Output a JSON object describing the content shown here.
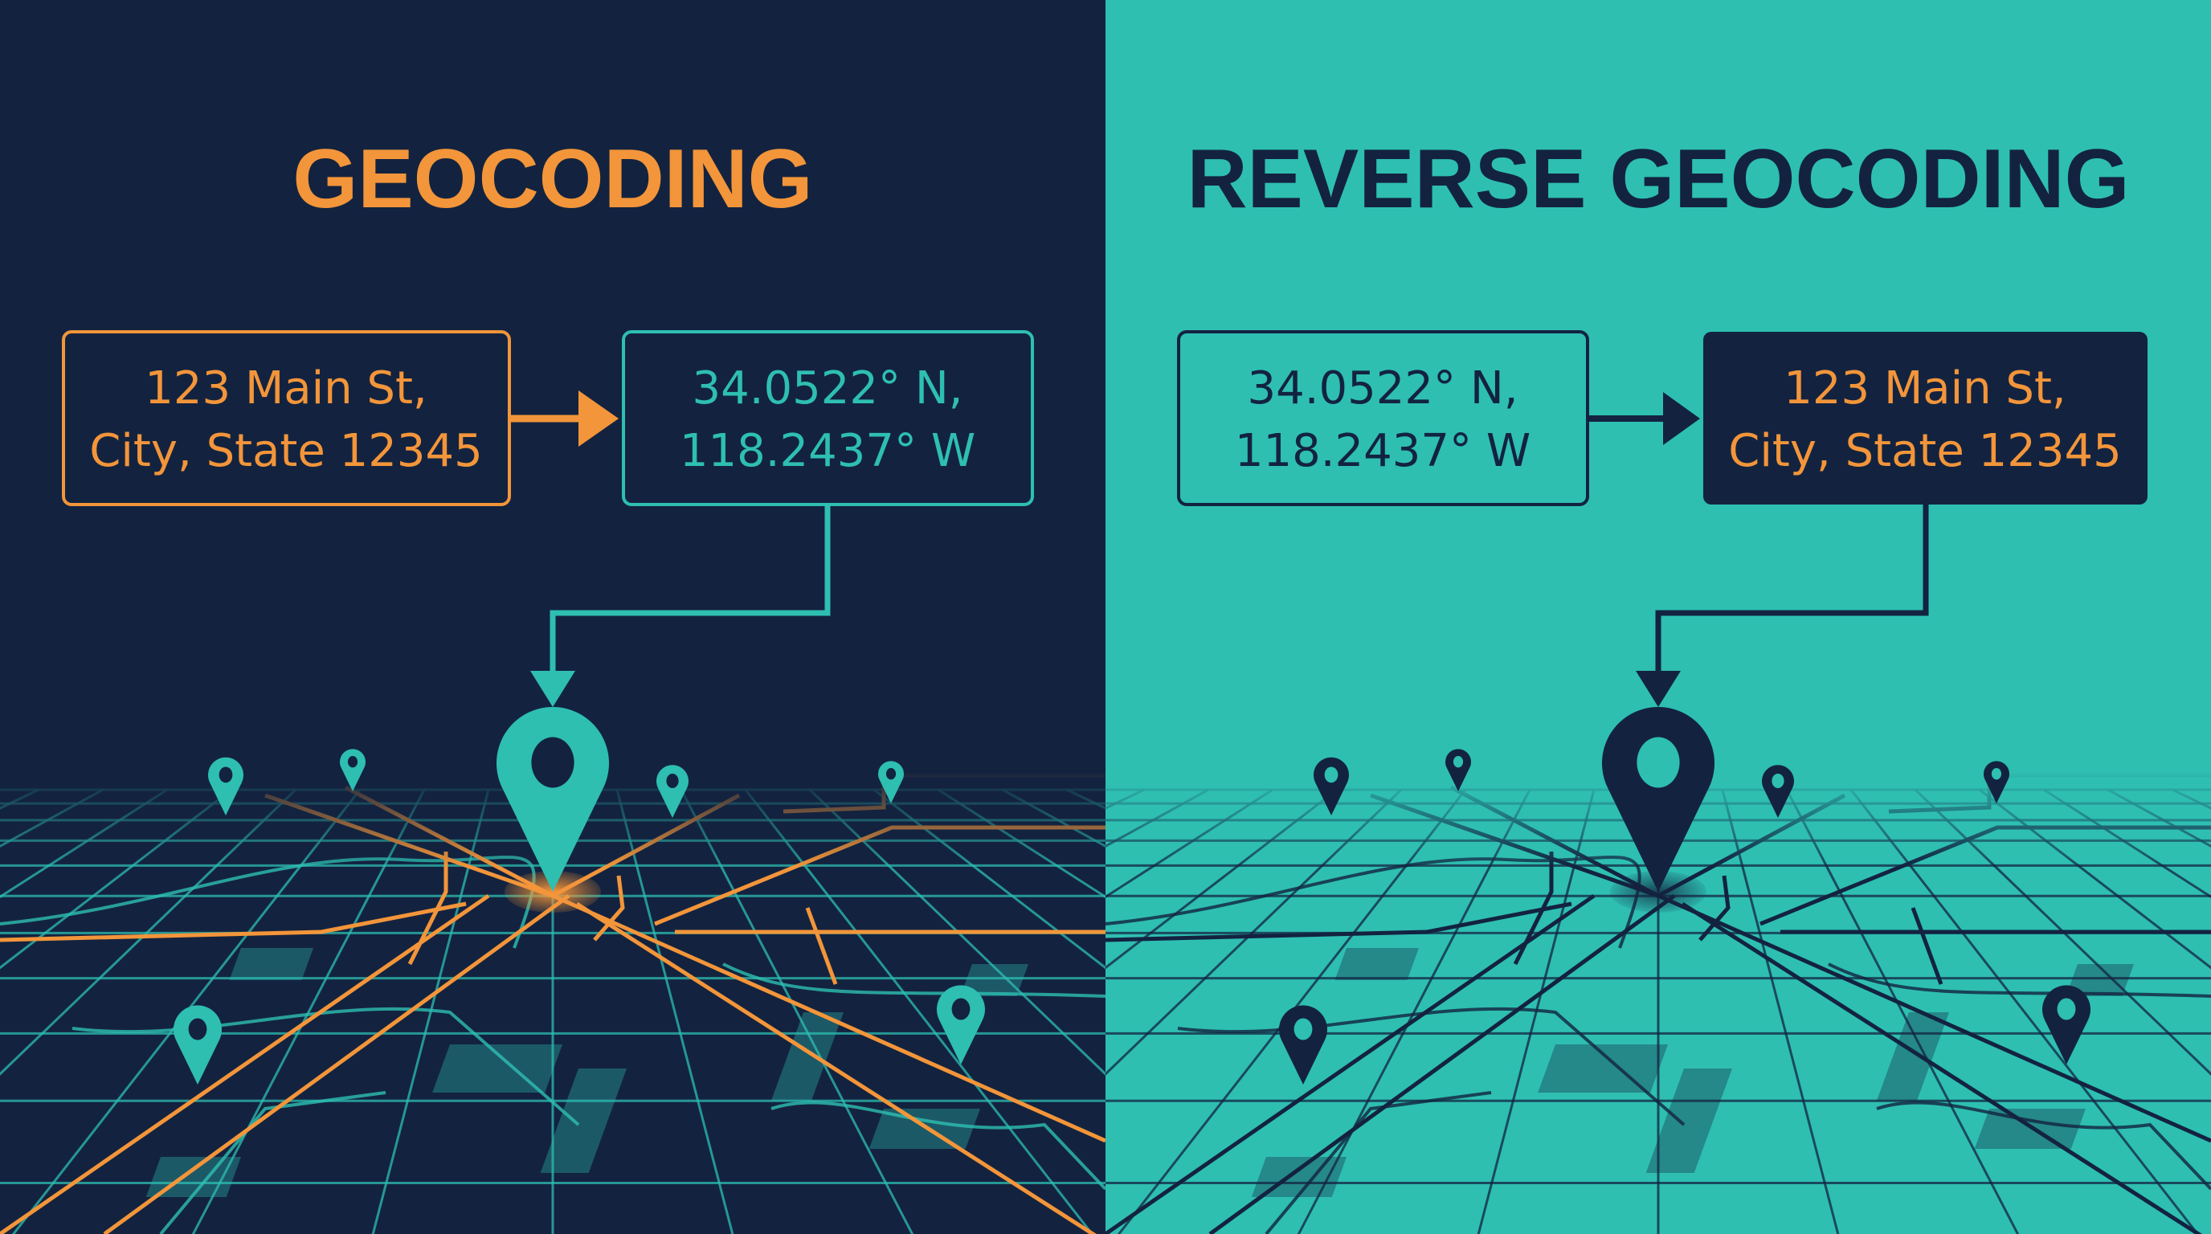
{
  "colors": {
    "navy": "#13233f",
    "teal": "#2ebfb1",
    "orange": "#f3953a"
  },
  "left_panel": {
    "title": "GEOCODING",
    "input_box": {
      "line1": "123 Main St,",
      "line2": "City, State 12345"
    },
    "output_box": {
      "line1": "34.0522° N,",
      "line2": "118.2437° W"
    },
    "pin_icon": "map-pin-icon"
  },
  "right_panel": {
    "title": "REVERSE GEOCODING",
    "input_box": {
      "line1": "34.0522° N,",
      "line2": "118.2437° W"
    },
    "output_box": {
      "line1": "123 Main St,",
      "line2": "City, State 12345"
    },
    "pin_icon": "map-pin-icon"
  }
}
